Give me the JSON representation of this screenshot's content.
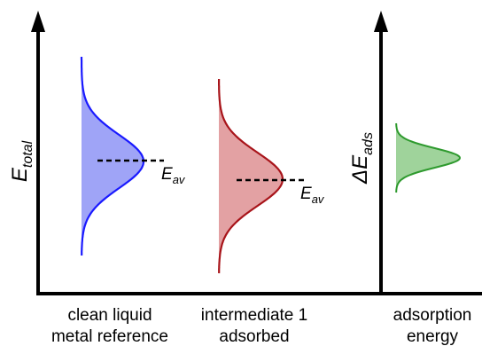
{
  "left_axis": {
    "label_main": "E",
    "label_sub": "total"
  },
  "right_axis": {
    "label_main": "ΔE",
    "label_sub": "ads"
  },
  "distributions": [
    {
      "id": "clean",
      "stroke": "#1a1aff",
      "fill": "#9fa4f7",
      "avg_label_main": "E",
      "avg_label_sub": "av",
      "has_average_line": true
    },
    {
      "id": "intermediate",
      "stroke": "#a8141a",
      "fill": "#e3a1a3",
      "avg_label_main": "E",
      "avg_label_sub": "av",
      "has_average_line": true
    },
    {
      "id": "adsorption",
      "stroke": "#2e9a2e",
      "fill": "#9fd39b",
      "has_average_line": false
    }
  ],
  "categories": [
    {
      "line1": "clean liquid",
      "line2": "metal reference"
    },
    {
      "line1": "intermediate 1",
      "line2": "adsorbed"
    },
    {
      "line1": "adsorption",
      "line2": "energy"
    }
  ]
}
